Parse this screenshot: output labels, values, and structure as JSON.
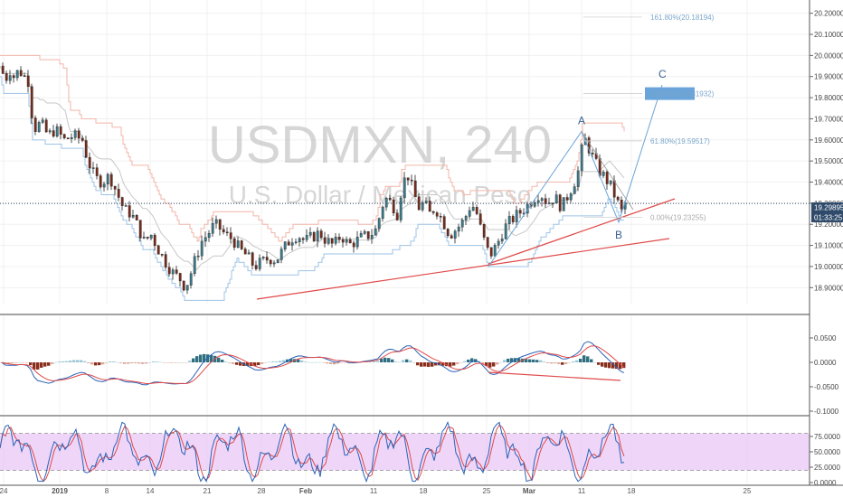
{
  "chart_data": [
    {
      "type": "candlestick",
      "symbol": "USDMXN",
      "interval": "240",
      "description": "U.S. Dollar / Mexican Peso",
      "last_price": "19.29895",
      "countdown": "01:33:25",
      "ylim": [
        18.82,
        20.22
      ],
      "y_ticks": [
        "20.20000",
        "20.10000",
        "20.00000",
        "19.90000",
        "19.80000",
        "19.70000",
        "19.60000",
        "19.50000",
        "19.40000",
        "19.30000",
        "19.20000",
        "19.10000",
        "19.00000",
        "18.90000"
      ],
      "x_ticks": [
        "24",
        "2019",
        "8",
        "14",
        "21",
        "28",
        "Feb",
        "11",
        "18",
        "25",
        "Mar",
        "11",
        "18",
        "25"
      ],
      "close_path": [
        [
          0,
          19.95
        ],
        [
          4,
          19.88
        ],
        [
          10,
          19.93
        ],
        [
          14,
          19.9
        ],
        [
          20,
          19.93
        ],
        [
          30,
          19.88
        ],
        [
          36,
          19.65
        ],
        [
          44,
          19.68
        ],
        [
          52,
          19.62
        ],
        [
          60,
          19.65
        ],
        [
          70,
          19.6
        ],
        [
          80,
          19.62
        ],
        [
          90,
          19.6
        ],
        [
          96,
          19.5
        ],
        [
          104,
          19.42
        ],
        [
          112,
          19.4
        ],
        [
          120,
          19.43
        ],
        [
          128,
          19.35
        ],
        [
          136,
          19.27
        ],
        [
          144,
          19.25
        ],
        [
          150,
          19.2
        ],
        [
          158,
          19.12
        ],
        [
          166,
          19.15
        ],
        [
          174,
          19.08
        ],
        [
          182,
          19.02
        ],
        [
          190,
          18.97
        ],
        [
          198,
          18.94
        ],
        [
          204,
          18.9
        ],
        [
          210,
          18.97
        ],
        [
          216,
          19.05
        ],
        [
          222,
          19.12
        ],
        [
          228,
          19.15
        ],
        [
          236,
          19.2
        ],
        [
          242,
          19.18
        ],
        [
          248,
          19.15
        ],
        [
          256,
          19.13
        ],
        [
          264,
          19.08
        ],
        [
          272,
          19.05
        ],
        [
          280,
          19.0
        ],
        [
          288,
          19.02
        ],
        [
          296,
          19.04
        ],
        [
          304,
          19.03
        ],
        [
          312,
          19.08
        ],
        [
          320,
          19.13
        ],
        [
          328,
          19.15
        ],
        [
          336,
          19.12
        ],
        [
          344,
          19.14
        ],
        [
          352,
          19.16
        ],
        [
          360,
          19.12
        ],
        [
          368,
          19.1
        ],
        [
          376,
          19.15
        ],
        [
          384,
          19.1
        ],
        [
          392,
          19.12
        ],
        [
          400,
          19.14
        ],
        [
          408,
          19.15
        ],
        [
          416,
          19.18
        ],
        [
          420,
          19.28
        ],
        [
          426,
          19.32
        ],
        [
          432,
          19.3
        ],
        [
          438,
          19.25
        ],
        [
          444,
          19.4
        ],
        [
          450,
          19.43
        ],
        [
          456,
          19.35
        ],
        [
          462,
          19.28
        ],
        [
          468,
          19.3
        ],
        [
          474,
          19.25
        ],
        [
          480,
          19.28
        ],
        [
          488,
          19.22
        ],
        [
          496,
          19.15
        ],
        [
          504,
          19.18
        ],
        [
          512,
          19.22
        ],
        [
          520,
          19.3
        ],
        [
          526,
          19.25
        ],
        [
          532,
          19.15
        ],
        [
          540,
          19.05
        ],
        [
          548,
          19.1
        ],
        [
          556,
          19.18
        ],
        [
          564,
          19.22
        ],
        [
          572,
          19.25
        ],
        [
          580,
          19.28
        ],
        [
          588,
          19.32
        ],
        [
          596,
          19.35
        ],
        [
          604,
          19.3
        ],
        [
          612,
          19.33
        ],
        [
          620,
          19.28
        ],
        [
          628,
          19.35
        ],
        [
          636,
          19.42
        ],
        [
          640,
          19.48
        ],
        [
          644,
          19.62
        ],
        [
          650,
          19.56
        ],
        [
          656,
          19.5
        ],
        [
          662,
          19.45
        ],
        [
          668,
          19.42
        ],
        [
          674,
          19.38
        ],
        [
          680,
          19.32
        ],
        [
          686,
          19.26
        ],
        [
          690,
          19.3
        ]
      ],
      "fibonacci": [
        {
          "label": "161.80%(20.18194)",
          "price": 20.18194
        },
        {
          "label": "100.00%(19.81932)",
          "price": 19.81932
        },
        {
          "label": "61.80%(19.59517)",
          "price": 19.59517
        },
        {
          "label": "0.00%(19.23255)",
          "price": 19.23255
        }
      ],
      "waves": [
        {
          "label": "A",
          "t": 643,
          "price": 19.64
        },
        {
          "label": "B",
          "t": 684,
          "price": 19.21
        },
        {
          "label": "C",
          "t": 732,
          "price": 19.86
        }
      ],
      "colors": {
        "up": "#3b7e8e",
        "down": "#7a2b1a",
        "wick": "#222222",
        "upper_band": "#f2b6a8",
        "lower_band": "#9ec3e6",
        "mid": "#c7c7c7",
        "trend": "#e04a4a",
        "projection": "#6aa4d8",
        "fib": "#7aa5cc",
        "fib_box": "#6aa4d8"
      }
    },
    {
      "type": "histogram",
      "indicator": "MACD",
      "ylim": [
        -0.1,
        0.1
      ],
      "y_ticks": [
        "0.0500",
        "0.0000",
        "-0.0500",
        "-0.1000"
      ]
    },
    {
      "type": "line",
      "indicator": "Stochastic",
      "ylim": [
        0,
        100
      ],
      "y_ticks": [
        "75.0000",
        "50.0000",
        "25.0000",
        "0.0000"
      ],
      "band": [
        20,
        80
      ],
      "colors": {
        "band": "#e9c8f6",
        "k": "#2a63b8",
        "d": "#e04a4a"
      }
    }
  ]
}
